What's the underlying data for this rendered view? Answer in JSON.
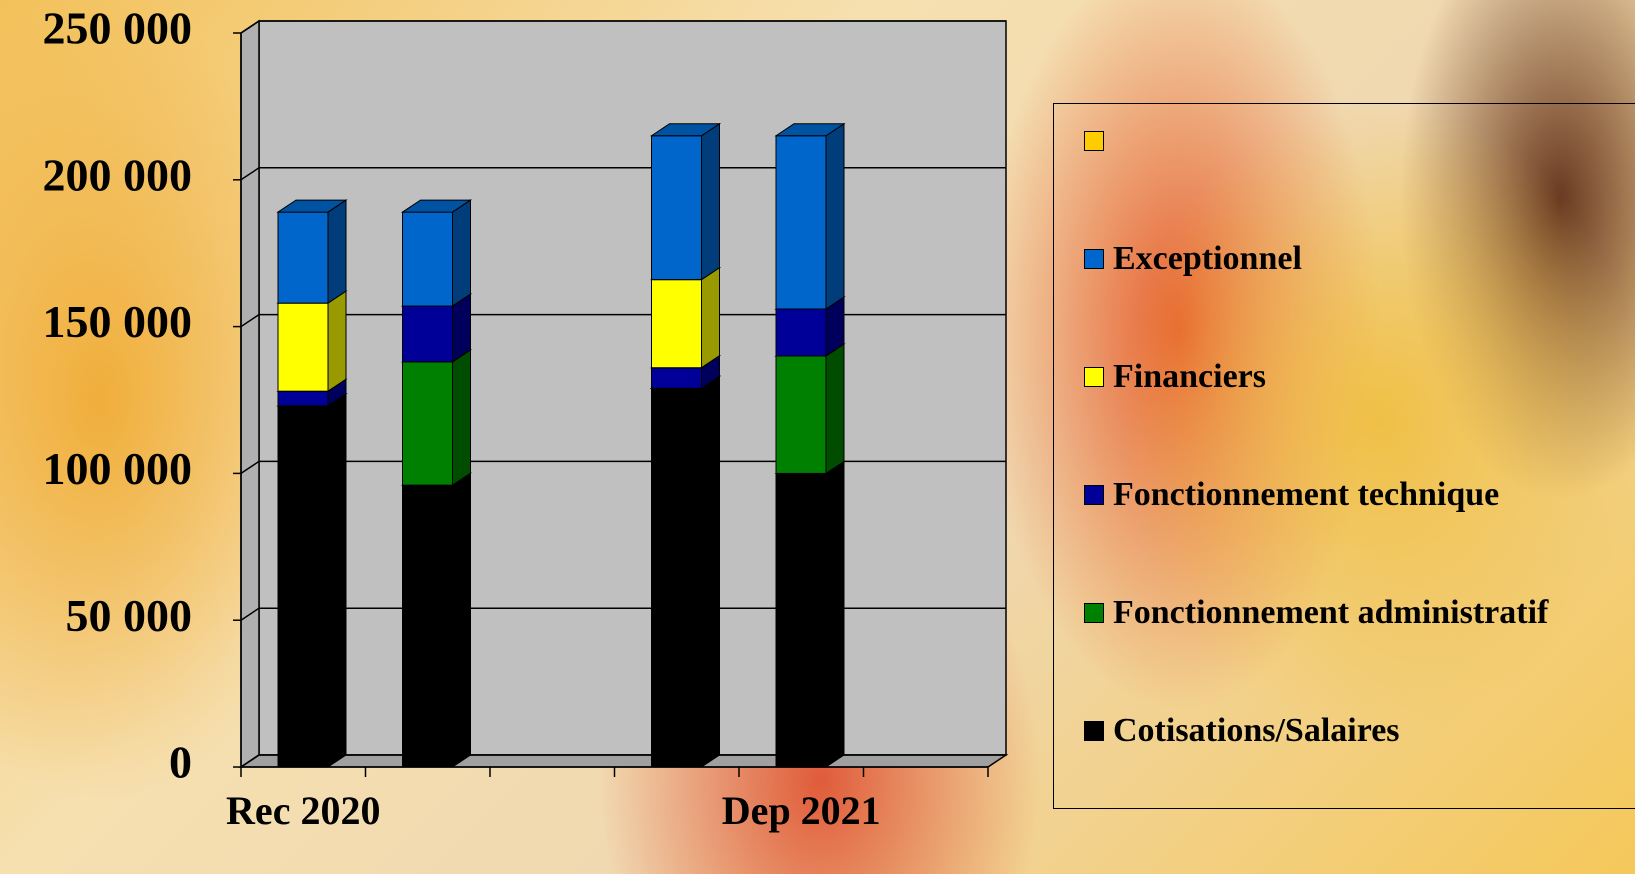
{
  "chart_data": {
    "type": "bar3d_stacked",
    "categories": [
      "Rec 2020",
      null,
      null,
      null,
      "Dep 2021",
      null
    ],
    "series": [
      {
        "name": "Cotisations/Salaires",
        "color": "#000000",
        "values": [
          123000,
          96000,
          null,
          129000,
          100000,
          null
        ]
      },
      {
        "name": "Fonctionnement administratif",
        "color": "#008000",
        "values": [
          0,
          42000,
          null,
          0,
          40000,
          null
        ]
      },
      {
        "name": "Fonctionnement technique",
        "color": "#000099",
        "values": [
          5000,
          19000,
          null,
          7000,
          16000,
          null
        ]
      },
      {
        "name": "Financiers",
        "color": "#ffff00",
        "values": [
          30000,
          0,
          null,
          30000,
          0,
          null
        ]
      },
      {
        "name": "Exceptionnel",
        "color": "#0066cc",
        "values": [
          31000,
          32000,
          null,
          49000,
          59000,
          null
        ]
      },
      {
        "name": null,
        "color": "#ffcc00",
        "values": [
          null,
          null,
          null,
          null,
          null,
          null
        ]
      }
    ],
    "ylim": [
      0,
      250000
    ],
    "yticks": [
      {
        "value": 0,
        "label": "0"
      },
      {
        "value": 50000,
        "label": "50 000"
      },
      {
        "value": 100000,
        "label": "100 000"
      },
      {
        "value": 150000,
        "label": "150 000"
      },
      {
        "value": 200000,
        "label": "200 000"
      },
      {
        "value": 250000,
        "label": "250 000"
      }
    ],
    "grid": true
  }
}
